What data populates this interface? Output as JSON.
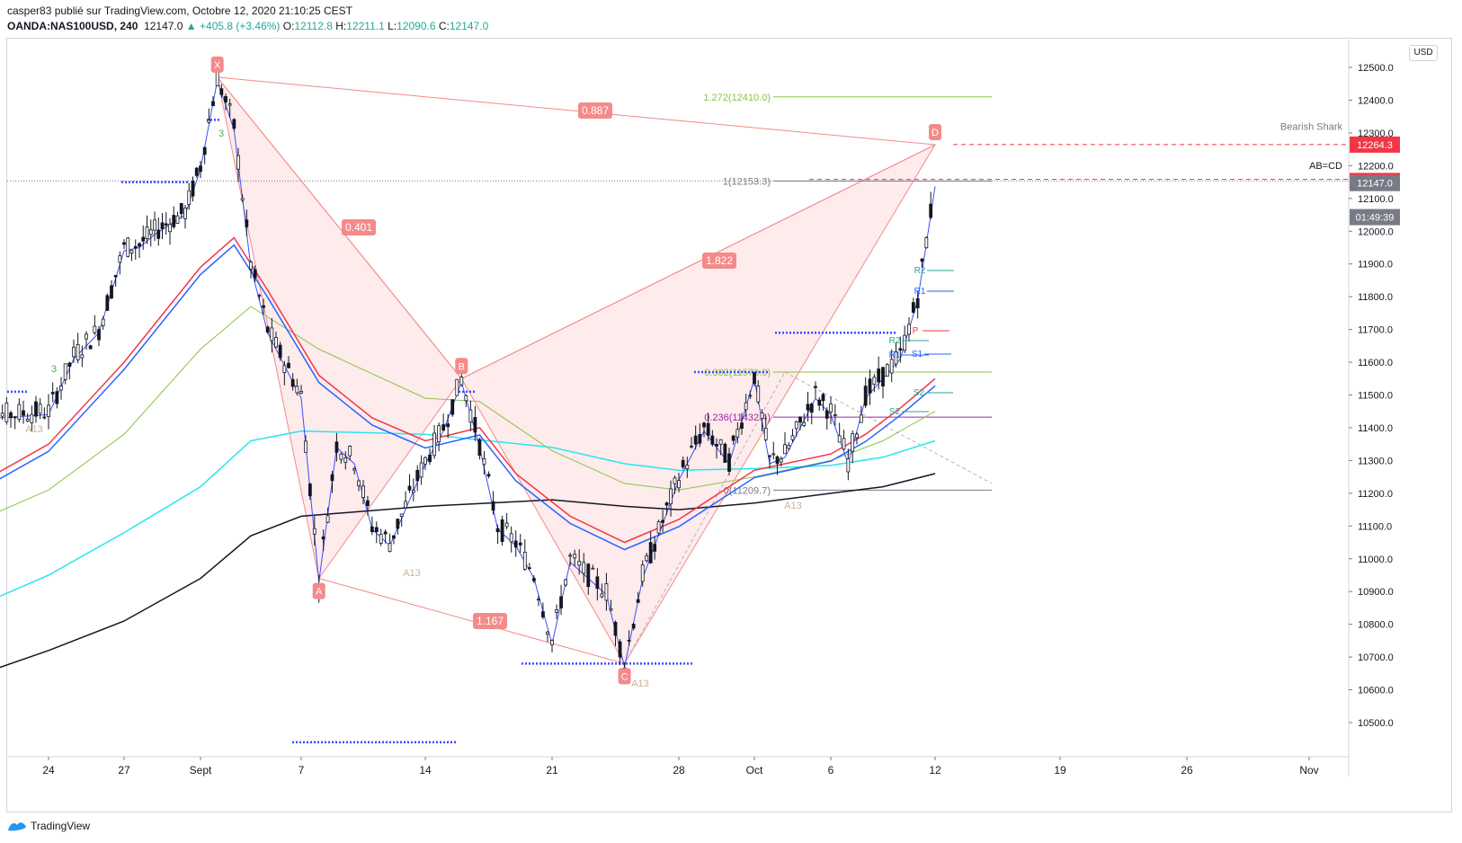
{
  "header": {
    "line1": "casper83 publié sur TradingView.com, Octobre 12, 2020 21:10:25 CEST",
    "symbol": "OANDA:NAS100USD, 240",
    "last": "12147.0",
    "change": "▲ +405.8 (+3.46%)",
    "o_label": "O:",
    "o": "12112.8",
    "h_label": "H:",
    "h": "12211.1",
    "l_label": "L:",
    "l": "12090.6",
    "c_label": "C:",
    "c": "12147.0"
  },
  "footer": {
    "brand": "TradingView"
  },
  "axis": {
    "currency": "USD"
  },
  "chart_data": {
    "type": "line",
    "title": "",
    "ylim": [
      10400,
      12530
    ],
    "x_ticks": [
      {
        "label": "24",
        "date": "2020-08-24"
      },
      {
        "label": "27",
        "date": "2020-08-27"
      },
      {
        "label": "Sept",
        "date": "2020-09-01"
      },
      {
        "label": "7",
        "date": "2020-09-07"
      },
      {
        "label": "14",
        "date": "2020-09-14"
      },
      {
        "label": "21",
        "date": "2020-09-21"
      },
      {
        "label": "28",
        "date": "2020-09-28"
      },
      {
        "label": "Oct",
        "date": "2020-10-01"
      },
      {
        "label": "6",
        "date": "2020-10-06"
      },
      {
        "label": "12",
        "date": "2020-10-12"
      },
      {
        "label": "19",
        "date": "2020-10-19"
      },
      {
        "label": "26",
        "date": "2020-10-26"
      },
      {
        "label": "Nov",
        "date": "2020-11-01"
      }
    ],
    "y_ticks": [
      "12500.0",
      "12400.0",
      "12300.0",
      "12200.0",
      "12100.0",
      "12000.0",
      "11900.0",
      "11800.0",
      "11700.0",
      "11600.0",
      "11500.0",
      "11400.0",
      "11300.0",
      "11200.0",
      "11100.0",
      "11000.0",
      "10900.0",
      "10800.0",
      "10700.0",
      "10600.0",
      "10500.0"
    ],
    "price_tags": [
      {
        "value": 12264.3,
        "label": "12264.3",
        "color": "#f23645"
      },
      {
        "value": 12153.3,
        "label": "12153.3",
        "color": "#f23645"
      },
      {
        "value": 12147.0,
        "label": "12147.0",
        "color": "#787b86"
      },
      {
        "label": "01:49:39",
        "value": 12043.0,
        "color": "#787b86"
      }
    ],
    "pattern": {
      "name": "Bearish Shark",
      "points": [
        {
          "label": "X",
          "date": "2020-09-02",
          "value": 12470
        },
        {
          "label": "A",
          "date": "2020-09-08",
          "value": 10940
        },
        {
          "label": "B",
          "date": "2020-09-16",
          "value": 11550
        },
        {
          "label": "C",
          "date": "2020-09-25",
          "value": 10680
        },
        {
          "label": "D",
          "date": "2020-10-12",
          "value": 12264
        }
      ],
      "ratios": [
        {
          "label": "0.887"
        },
        {
          "label": "0.401"
        },
        {
          "label": "1.822"
        },
        {
          "label": "1.167"
        }
      ],
      "ab_cd": "AB=CD"
    },
    "fib_levels": [
      {
        "label": "1.272(12410.0)",
        "value": 12410.0,
        "color": "#8bc34a"
      },
      {
        "label": "1(12153.3)",
        "value": 12153.3,
        "color": "#787b86"
      },
      {
        "label": "0.382(11570.0)",
        "value": 11570.0,
        "color": "#8bc34a"
      },
      {
        "label": "0.236(11432.4)",
        "value": 11432.4,
        "color": "#9c27b0"
      },
      {
        "label": "0(11209.7)",
        "value": 11209.7,
        "color": "#787b86"
      }
    ],
    "pivot_labels": [
      "R2",
      "R1",
      "P",
      "R2",
      "R1",
      "S1",
      "S2",
      "S2"
    ],
    "markers": [
      "A13",
      "A13",
      "A13",
      "A13",
      "3",
      "3"
    ],
    "series": [
      {
        "name": "",
        "color": "#131722",
        "kind": "price"
      },
      {
        "name": "",
        "color": "#2962ff",
        "kind": "ma"
      },
      {
        "name": "",
        "color": "#f23645",
        "kind": "ma"
      },
      {
        "name": "",
        "color": "#8bc34a",
        "kind": "ma"
      },
      {
        "name": "",
        "color": "#26e6f0",
        "kind": "ma"
      },
      {
        "name": "",
        "color": "#131722",
        "kind": "ma"
      }
    ],
    "price_path": [
      [
        "2020-08-21",
        11310
      ],
      [
        "2020-08-22",
        11440
      ],
      [
        "2020-08-24",
        11450
      ],
      [
        "2020-08-25",
        11620
      ],
      [
        "2020-08-26",
        11700
      ],
      [
        "2020-08-27",
        11950
      ],
      [
        "2020-08-28",
        11960
      ],
      [
        "2020-08-29",
        12000
      ],
      [
        "2020-08-31",
        12060
      ],
      [
        "2020-09-01",
        12200
      ],
      [
        "2020-09-02",
        12470
      ],
      [
        "2020-09-03",
        12320
      ],
      [
        "2020-09-04",
        11900
      ],
      [
        "2020-09-05",
        11700
      ],
      [
        "2020-09-06",
        11600
      ],
      [
        "2020-09-07",
        11500
      ],
      [
        "2020-09-08",
        10940
      ],
      [
        "2020-09-09",
        11350
      ],
      [
        "2020-09-10",
        11300
      ],
      [
        "2020-09-11",
        11100
      ],
      [
        "2020-09-12",
        11050
      ],
      [
        "2020-09-14",
        11300
      ],
      [
        "2020-09-15",
        11400
      ],
      [
        "2020-09-16",
        11550
      ],
      [
        "2020-09-17",
        11350
      ],
      [
        "2020-09-18",
        11100
      ],
      [
        "2020-09-19",
        11050
      ],
      [
        "2020-09-20",
        10950
      ],
      [
        "2020-09-21",
        10750
      ],
      [
        "2020-09-22",
        11000
      ],
      [
        "2020-09-23",
        10950
      ],
      [
        "2020-09-24",
        10900
      ],
      [
        "2020-09-25",
        10680
      ],
      [
        "2020-09-26",
        10950
      ],
      [
        "2020-09-28",
        11250
      ],
      [
        "2020-09-29",
        11400
      ],
      [
        "2020-09-30",
        11300
      ],
      [
        "2020-10-01",
        11560
      ],
      [
        "2020-10-02",
        11300
      ],
      [
        "2020-10-03",
        11320
      ],
      [
        "2020-10-05",
        11500
      ],
      [
        "2020-10-06",
        11450
      ],
      [
        "2020-10-07",
        11300
      ],
      [
        "2020-10-08",
        11500
      ],
      [
        "2020-10-09",
        11560
      ],
      [
        "2020-10-10",
        11620
      ],
      [
        "2020-10-11",
        11800
      ],
      [
        "2020-10-12",
        12147
      ]
    ],
    "ma_fast": [
      [
        "2020-08-21",
        11220
      ],
      [
        "2020-08-24",
        11350
      ],
      [
        "2020-08-27",
        11600
      ],
      [
        "2020-09-01",
        11890
      ],
      [
        "2020-09-03",
        11980
      ],
      [
        "2020-09-05",
        11820
      ],
      [
        "2020-09-08",
        11560
      ],
      [
        "2020-09-11",
        11430
      ],
      [
        "2020-09-14",
        11360
      ],
      [
        "2020-09-17",
        11400
      ],
      [
        "2020-09-19",
        11260
      ],
      [
        "2020-09-22",
        11130
      ],
      [
        "2020-09-25",
        11050
      ],
      [
        "2020-09-28",
        11120
      ],
      [
        "2020-10-01",
        11270
      ],
      [
        "2020-10-03",
        11290
      ],
      [
        "2020-10-06",
        11320
      ],
      [
        "2020-10-08",
        11380
      ],
      [
        "2020-10-10",
        11460
      ],
      [
        "2020-10-12",
        11550
      ]
    ],
    "ma_mid": [
      [
        "2020-08-21",
        11110
      ],
      [
        "2020-08-24",
        11210
      ],
      [
        "2020-08-27",
        11380
      ],
      [
        "2020-09-01",
        11640
      ],
      [
        "2020-09-04",
        11770
      ],
      [
        "2020-09-08",
        11640
      ],
      [
        "2020-09-14",
        11490
      ],
      [
        "2020-09-17",
        11480
      ],
      [
        "2020-09-21",
        11330
      ],
      [
        "2020-09-25",
        11230
      ],
      [
        "2020-09-28",
        11210
      ],
      [
        "2020-10-01",
        11250
      ],
      [
        "2020-10-06",
        11300
      ],
      [
        "2020-10-09",
        11360
      ],
      [
        "2020-10-12",
        11450
      ]
    ],
    "ma_cyan": [
      [
        "2020-08-21",
        10850
      ],
      [
        "2020-08-24",
        10950
      ],
      [
        "2020-08-27",
        11080
      ],
      [
        "2020-09-01",
        11220
      ],
      [
        "2020-09-04",
        11360
      ],
      [
        "2020-09-07",
        11390
      ],
      [
        "2020-09-14",
        11380
      ],
      [
        "2020-09-21",
        11340
      ],
      [
        "2020-09-25",
        11290
      ],
      [
        "2020-09-28",
        11270
      ],
      [
        "2020-10-01",
        11275
      ],
      [
        "2020-10-06",
        11285
      ],
      [
        "2020-10-09",
        11310
      ],
      [
        "2020-10-12",
        11360
      ]
    ],
    "ma_black": [
      [
        "2020-08-21",
        10640
      ],
      [
        "2020-08-24",
        10720
      ],
      [
        "2020-08-27",
        10810
      ],
      [
        "2020-09-01",
        10940
      ],
      [
        "2020-09-04",
        11070
      ],
      [
        "2020-09-07",
        11130
      ],
      [
        "2020-09-14",
        11160
      ],
      [
        "2020-09-21",
        11180
      ],
      [
        "2020-09-25",
        11160
      ],
      [
        "2020-09-28",
        11150
      ],
      [
        "2020-10-01",
        11170
      ],
      [
        "2020-10-06",
        11200
      ],
      [
        "2020-10-09",
        11220
      ],
      [
        "2020-10-12",
        11260
      ]
    ]
  }
}
